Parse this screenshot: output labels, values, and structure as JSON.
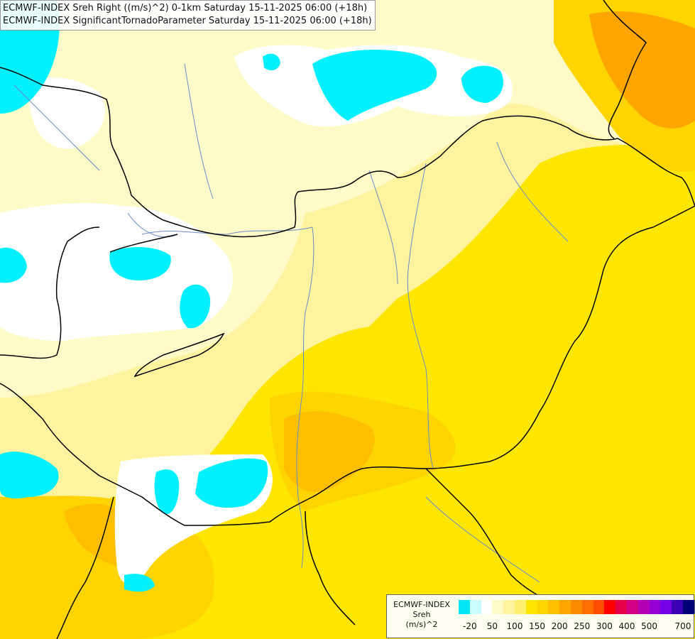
{
  "titles": [
    "ECMWF-INDEX Sreh Right ((m/s)^2) 0-1km Saturday 15-11-2025 06:00 (+18h)",
    "ECMWF-INDEX SignificantTornadoParameter Saturday 15-11-2025 06:00 (+18h)"
  ],
  "legend": {
    "title_line1": "ECMWF-INDEX",
    "title_line2": "Sreh",
    "title_line3": "(m/s)^2",
    "colors": [
      "#00e6f5",
      "#c8fcff",
      "#ffffff",
      "#fffbc8",
      "#fff3a0",
      "#fff070",
      "#ffe600",
      "#ffd400",
      "#ffbe00",
      "#ffa500",
      "#ff8c00",
      "#ff6e00",
      "#ff4d00",
      "#ff0000",
      "#e6004c",
      "#d20082",
      "#b400b4",
      "#9600d2",
      "#7800e6",
      "#3c00b4",
      "#000078"
    ],
    "ticks": [
      "-20",
      "50",
      "100",
      "150",
      "200",
      "250",
      "300",
      "400",
      "500",
      "700"
    ]
  },
  "colors": {
    "cyan": "#00f0ff",
    "white": "#ffffff",
    "pale": "#fffbc8",
    "light_yellow": "#fff3a0",
    "yellow": "#ffe600",
    "gold": "#ffd400",
    "orange": "#ffa500",
    "border": "#000000",
    "river": "#6a8cc8"
  }
}
